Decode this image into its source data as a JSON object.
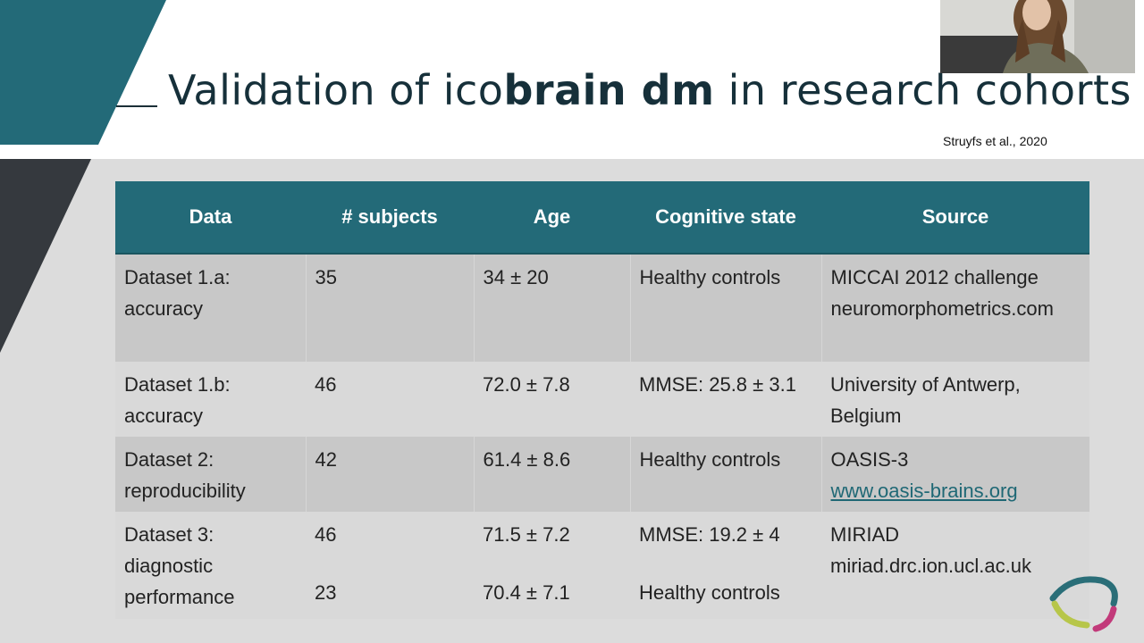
{
  "slide": {
    "title_prefix": "Validation of ico",
    "title_bold": "brain dm",
    "title_suffix": " in research cohorts",
    "citation": "Struyfs et al., 2020"
  },
  "table": {
    "headers": [
      "Data",
      "# subjects",
      "Age",
      "Cognitive state",
      "Source"
    ],
    "rows": [
      {
        "data": "Dataset 1.a: accuracy",
        "subjects": "35",
        "age": "34 ± 20",
        "state": "Healthy controls",
        "source_line1": "MICCAI 2012 challenge",
        "source_line2": "neuromorphometrics.com"
      },
      {
        "data": "Dataset 1.b: accuracy",
        "subjects": "46",
        "age": "72.0 ± 7.8",
        "state": "MMSE: 25.8 ± 3.1",
        "source_line1": "University of Antwerp, Belgium"
      },
      {
        "data": "Dataset 2: reproducibility",
        "subjects": "42",
        "age": "61.4 ± 8.6",
        "state": "Healthy controls",
        "source_line1": "OASIS-3",
        "source_link": "www.oasis-brains.org"
      },
      {
        "data": "Dataset 3: diagnostic performance",
        "subjects_a": "46",
        "subjects_b": "23",
        "age_a": "71.5 ± 7.2",
        "age_b": "70.4 ± 7.1",
        "state_a": "MMSE: 19.2 ± 4",
        "state_b": "Healthy controls",
        "source_line1": "MIRIAD",
        "source_line2": "miriad.drc.ion.ucl.ac.uk"
      }
    ]
  },
  "colors": {
    "teal": "#236a78",
    "dark_teal": "#16303a",
    "dark_band": "#35393e",
    "row_dark": "#c8c8c8",
    "row_light": "#d9d9d9"
  }
}
